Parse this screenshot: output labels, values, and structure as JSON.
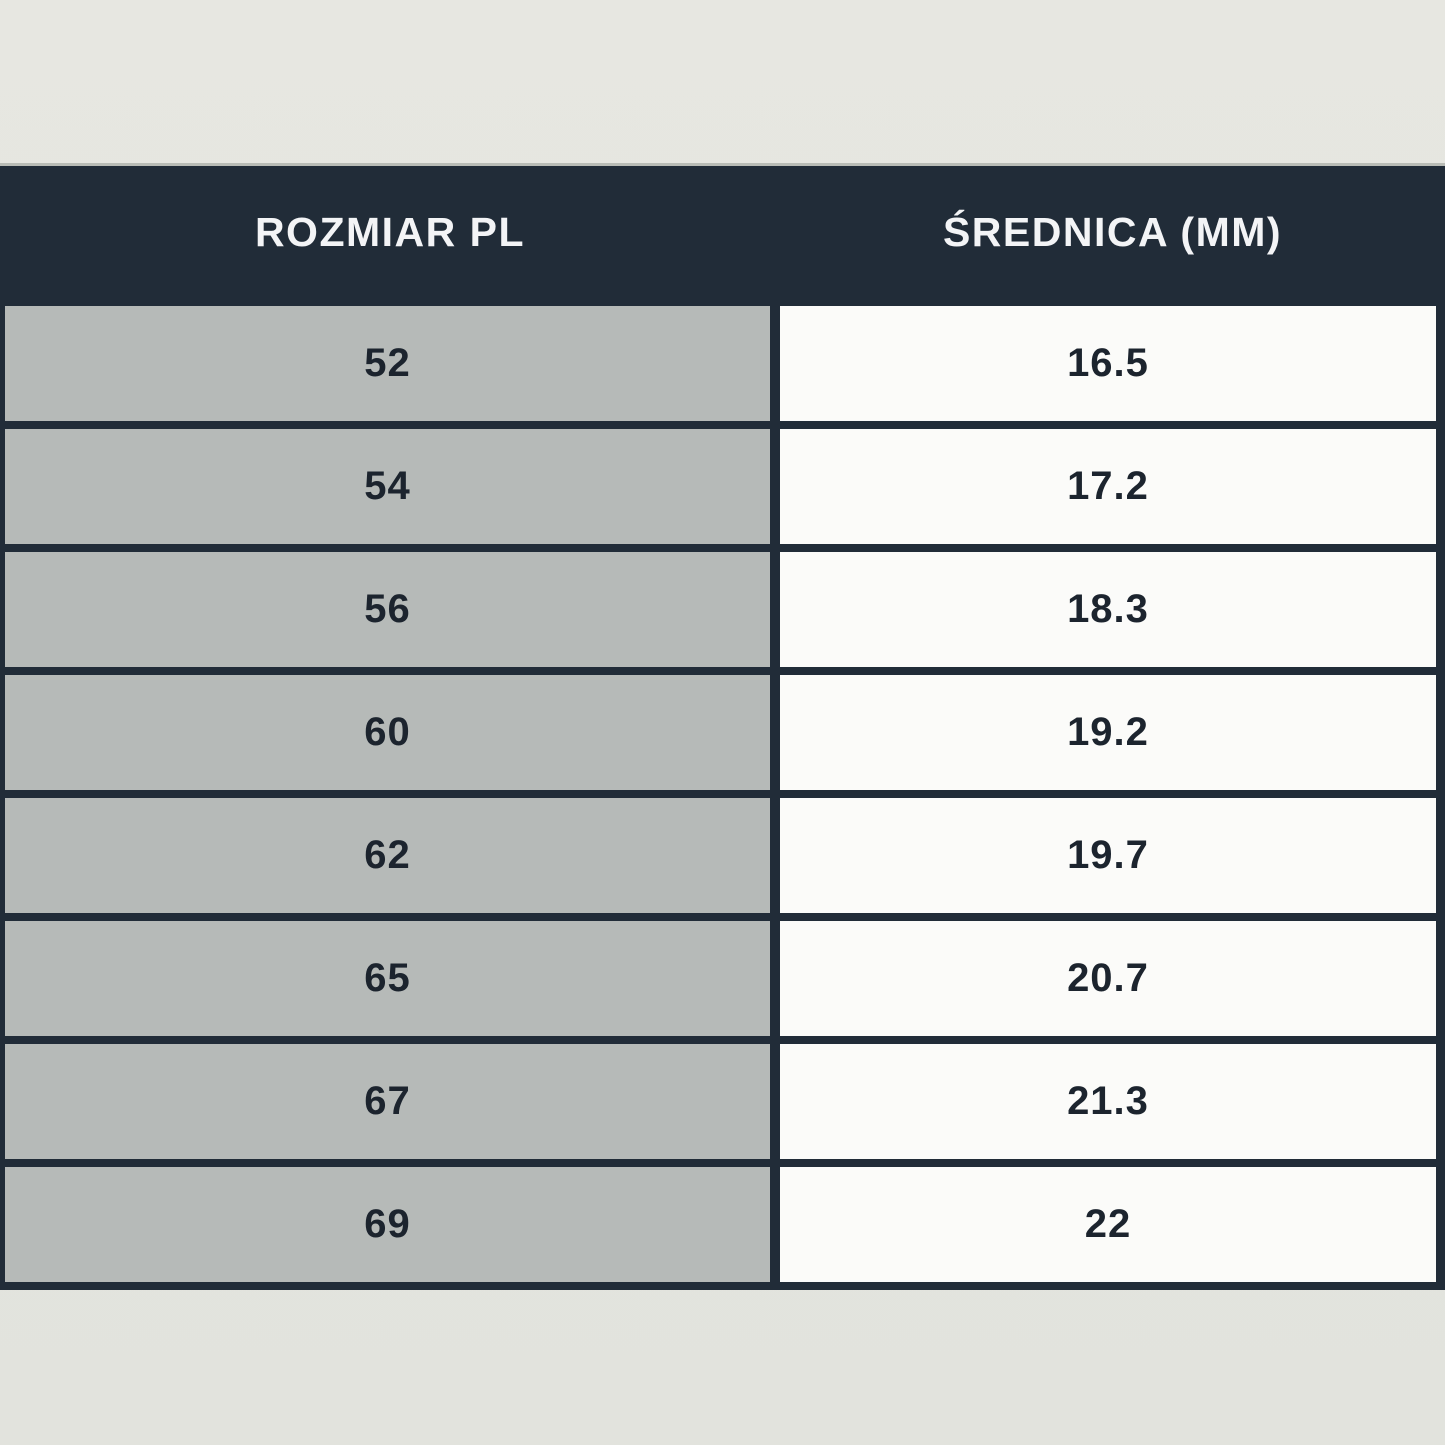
{
  "colors": {
    "page_background": "#e3e4de",
    "header_background": "#212c38",
    "border": "#212c38",
    "size_column_background": "#b6bab8",
    "diameter_column_background": "#fbfbf9",
    "header_text": "#f3f4f6",
    "cell_text": "#1c242e"
  },
  "chart_data": {
    "type": "table",
    "title": "",
    "columns": [
      "ROZMIAR PL",
      "ŚREDNICA (MM)"
    ],
    "rows": [
      [
        "52",
        "16.5"
      ],
      [
        "54",
        "17.2"
      ],
      [
        "56",
        "18.3"
      ],
      [
        "60",
        "19.2"
      ],
      [
        "62",
        "19.7"
      ],
      [
        "65",
        "20.7"
      ],
      [
        "67",
        "21.3"
      ],
      [
        "69",
        "22"
      ]
    ]
  }
}
